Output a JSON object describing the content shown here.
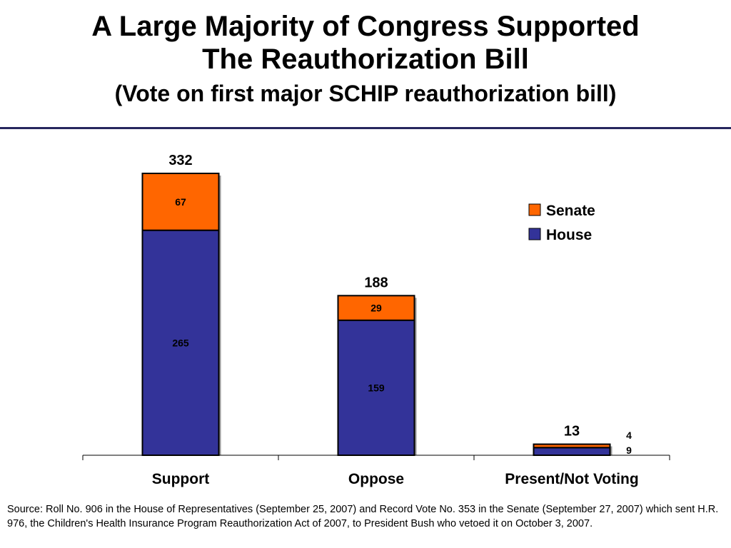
{
  "header": {
    "title_line1": "A Large Majority of Congress Supported",
    "title_line2": "The Reauthorization Bill",
    "subtitle": "(Vote on first major SCHIP reauthorization bill)"
  },
  "chart_data": {
    "type": "bar",
    "stacked": true,
    "categories": [
      "Support",
      "Oppose",
      "Present/Not Voting"
    ],
    "series": [
      {
        "name": "House",
        "values": [
          265,
          159,
          9
        ],
        "color": "#333399"
      },
      {
        "name": "Senate",
        "values": [
          67,
          29,
          4
        ],
        "color": "#ff6600"
      }
    ],
    "totals": [
      332,
      188,
      13
    ],
    "legend": {
      "placement": "right",
      "entries": [
        "Senate",
        "House"
      ]
    },
    "ylim": [
      0,
      332
    ],
    "grid": false
  },
  "footer": {
    "source": "Source: Roll No. 906 in the House of Representatives (September 25, 2007) and Record Vote No. 353 in the Senate (September 27, 2007) which sent H.R. 976, the Children's Health Insurance Program Reauthorization Act of 2007, to President Bush who vetoed it on October 3, 2007."
  }
}
